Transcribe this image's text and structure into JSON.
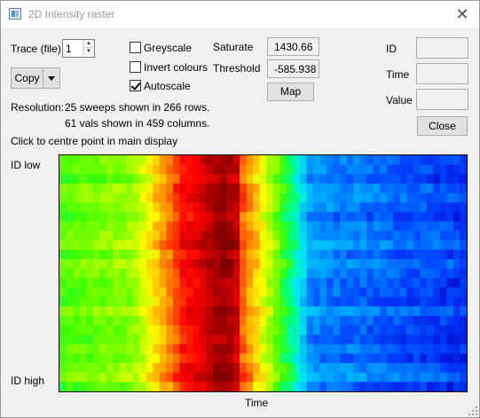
{
  "window": {
    "title": "2D Intensity raster",
    "icon": "raster-window-icon",
    "close_glyph": "✕"
  },
  "trace": {
    "label": "Trace (file)",
    "value": "1"
  },
  "copy_button": {
    "label": "Copy"
  },
  "options": [
    {
      "label": "Greyscale",
      "checked": false
    },
    {
      "label": "Invert colours",
      "checked": false
    },
    {
      "label": "Autoscale",
      "checked": true
    }
  ],
  "levels": {
    "saturate_label": "Saturate",
    "saturate_value": "1430.66",
    "threshold_label": "Threshold",
    "threshold_value": "-585.938",
    "map_label": "Map"
  },
  "readout": {
    "id_label": "ID",
    "time_label": "Time",
    "value_label": "Value",
    "id_value": "",
    "time_value": "",
    "value_value": "",
    "close_label": "Close"
  },
  "resolution": {
    "label": "Resolution:",
    "line1": "25 sweeps shown in 266 rows.",
    "line2": "61 vals shown in 459 columns."
  },
  "hint": "Click to centre point in main display",
  "raster": {
    "id_low_label": "ID low",
    "id_high_label": "ID high",
    "x_axis_label": "Time",
    "sweeps": 25,
    "columns": 61,
    "colormap": [
      "#0000c8",
      "#0040ff",
      "#00a0ff",
      "#00e8ff",
      "#00ff80",
      "#40ff00",
      "#a0ff00",
      "#ffff00",
      "#ffb000",
      "#ff5000",
      "#ff0000",
      "#c00000",
      "#800000"
    ]
  }
}
